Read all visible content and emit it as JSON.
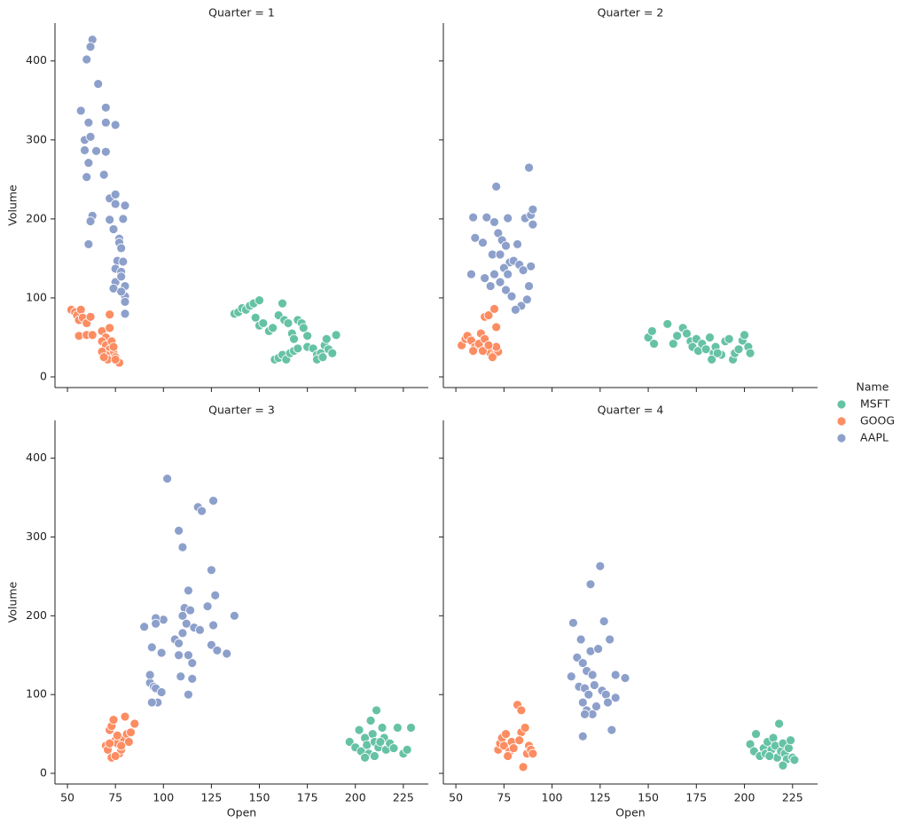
{
  "chart_data": {
    "type": "scatter",
    "xlabel": "Open",
    "ylabel": "Volume",
    "legend_title": "Name",
    "series": [
      {
        "name": "MSFT",
        "color": "#66c2a5"
      },
      {
        "name": "GOOG",
        "color": "#fc8d62"
      },
      {
        "name": "AAPL",
        "color": "#8da0cb"
      }
    ],
    "xlim": [
      43.5,
      238
    ],
    "ylim": [
      -13.5,
      448
    ],
    "xticks": [
      50,
      75,
      100,
      125,
      150,
      175,
      200,
      225
    ],
    "yticks": [
      0,
      100,
      200,
      300,
      400
    ],
    "facets": [
      {
        "title": "Quarter = 1",
        "data": [
          {
            "x": [
              137,
              139,
              141,
              143,
              145,
              147,
              150,
              148,
              150,
              152,
              155,
              157,
              160,
              162,
              163,
              165,
              167,
              168,
              170,
              172,
              173,
              175,
              158,
              160,
              162,
              164,
              166,
              168,
              170,
              175,
              178,
              180,
              182,
              184,
              185,
              186,
              188,
              190,
              180,
              183
            ],
            "values": [
              80,
              82,
              87,
              85,
              90,
              93,
              97,
              75,
              65,
              68,
              58,
              62,
              78,
              93,
              72,
              68,
              55,
              48,
              72,
              68,
              62,
              52,
              22,
              24,
              28,
              22,
              30,
              33,
              36,
              38,
              36,
              28,
              30,
              40,
              48,
              35,
              30,
              53,
              22,
              25
            ]
          },
          {
            "x": [
              52,
              54,
              55,
              56,
              57,
              58,
              60,
              62,
              56,
              60,
              63,
              68,
              70,
              72,
              72,
              68,
              70,
              72,
              74,
              75,
              76,
              77,
              70,
              68,
              73,
              74,
              71,
              69,
              75
            ],
            "values": [
              85,
              82,
              78,
              72,
              85,
              75,
              68,
              76,
              52,
              53,
              53,
              58,
              50,
              62,
              79,
              45,
              40,
              35,
              30,
              25,
              20,
              18,
              28,
              32,
              45,
              38,
              22,
              25,
              22
            ]
          },
          {
            "x": [
              63,
              62,
              60,
              66,
              57,
              70,
              61,
              70,
              75,
              59,
              62,
              65,
              70,
              59,
              61,
              60,
              69,
              72,
              75,
              75,
              80,
              63,
              62,
              72,
              79,
              74,
              61,
              77,
              77,
              78,
              76,
              79,
              75,
              78,
              75,
              78,
              80,
              74,
              80,
              80,
              80,
              78
            ],
            "values": [
              427,
              418,
              402,
              371,
              337,
              341,
              322,
              322,
              319,
              300,
              304,
              286,
              285,
              287,
              271,
              253,
              256,
              226,
              231,
              219,
              217,
              204,
              197,
              199,
              200,
              187,
              168,
              175,
              170,
              163,
              147,
              146,
              137,
              133,
              120,
              127,
              115,
              112,
              102,
              95,
              80,
              108
            ]
          }
        ]
      },
      {
        "title": "Quarter = 2",
        "data": [
          {
            "x": [
              150,
              152,
              153,
              160,
              163,
              165,
              168,
              170,
              172,
              173,
              175,
              176,
              178,
              180,
              182,
              184,
              185,
              188,
              190,
              192,
              194,
              195,
              197,
              199,
              200,
              202,
              203,
              183,
              186
            ],
            "values": [
              50,
              58,
              42,
              67,
              42,
              52,
              62,
              55,
              45,
              38,
              48,
              33,
              42,
              35,
              50,
              30,
              38,
              28,
              45,
              48,
              22,
              30,
              35,
              46,
              53,
              38,
              30,
              22,
              30
            ]
          },
          {
            "x": [
              53,
              55,
              56,
              58,
              60,
              62,
              63,
              65,
              65,
              67,
              70,
              71,
              66,
              68,
              70,
              72,
              69,
              71,
              64,
              67,
              59
            ],
            "values": [
              40,
              48,
              52,
              46,
              38,
              42,
              55,
              48,
              76,
              78,
              86,
              63,
              35,
              30,
              28,
              32,
              25,
              38,
              33,
              40,
              33
            ]
          },
          {
            "x": [
              88,
              71,
              77,
              59,
              66,
              70,
              72,
              60,
              74,
              86,
              89,
              90,
              90,
              64,
              82,
              76,
              69,
              73,
              78,
              80,
              83,
              89,
              85,
              65,
              70,
              73,
              68,
              76,
              79,
              84,
              87,
              88,
              81,
              75,
              58,
              77
            ],
            "values": [
              265,
              241,
              201,
              202,
              202,
              196,
              182,
              176,
              173,
              201,
              205,
              212,
              193,
              170,
              168,
              166,
              155,
              155,
              145,
              147,
              142,
              140,
              135,
              125,
              130,
              120,
              115,
              110,
              102,
              90,
              98,
              115,
              85,
              138,
              130,
              130
            ]
          }
        ]
      },
      {
        "title": "Quarter = 3",
        "data": [
          {
            "x": [
              197,
              200,
              202,
              203,
              205,
              206,
              207,
              208,
              209,
              210,
              211,
              212,
              214,
              215,
              216,
              218,
              220,
              222,
              225,
              227,
              229,
              205,
              210,
              213
            ],
            "values": [
              40,
              33,
              55,
              28,
              45,
              36,
              25,
              67,
              50,
              40,
              80,
              33,
              58,
              45,
              30,
              38,
              32,
              58,
              25,
              30,
              58,
              20,
              22,
              40
            ]
          },
          {
            "x": [
              70,
              71,
              72,
              73,
              74,
              75,
              76,
              77,
              78,
              79,
              80,
              81,
              82,
              83,
              85,
              73,
              75,
              76,
              72,
              78
            ],
            "values": [
              35,
              30,
              55,
              60,
              68,
              42,
              38,
              25,
              30,
              45,
              72,
              50,
              40,
              52,
              63,
              20,
              22,
              48,
              38,
              35
            ]
          },
          {
            "x": [
              102,
              126,
              118,
              120,
              108,
              110,
              125,
              113,
              127,
              111,
              114,
              123,
              137,
              100,
              110,
              112,
              116,
              119,
              126,
              90,
              96,
              96,
              106,
              108,
              110,
              113,
              115,
              125,
              128,
              133,
              108,
              94,
              99,
              93,
              95,
              96,
              99,
              115,
              97,
              94,
              113,
              109,
              93
            ],
            "values": [
              374,
              346,
              338,
              333,
              308,
              287,
              258,
              232,
              226,
              210,
              207,
              212,
              200,
              195,
              200,
              190,
              185,
              182,
              188,
              186,
              197,
              190,
              170,
              165,
              178,
              150,
              140,
              163,
              156,
              152,
              150,
              160,
              153,
              115,
              110,
              108,
              103,
              120,
              90,
              90,
              100,
              123,
              125
            ]
          }
        ]
      },
      {
        "title": "Quarter = 4",
        "data": [
          {
            "x": [
              203,
              205,
              206,
              208,
              210,
              211,
              212,
              214,
              215,
              216,
              217,
              218,
              219,
              220,
              221,
              222,
              223,
              224,
              225,
              226,
              220,
              213
            ],
            "values": [
              37,
              28,
              50,
              22,
              32,
              25,
              40,
              30,
              45,
              35,
              20,
              63,
              28,
              38,
              25,
              18,
              32,
              42,
              20,
              17,
              10,
              22
            ]
          },
          {
            "x": [
              72,
              73,
              74,
              75,
              76,
              78,
              79,
              82,
              84,
              84,
              85,
              86,
              87,
              88,
              89,
              90,
              80,
              77,
              83
            ],
            "values": [
              30,
              38,
              45,
              35,
              50,
              28,
              40,
              87,
              80,
              52,
              8,
              58,
              25,
              35,
              30,
              25,
              32,
              22,
              42
            ]
          },
          {
            "x": [
              125,
              120,
              127,
              111,
              115,
              130,
              120,
              124,
              113,
              116,
              118,
              121,
              110,
              133,
              138,
              114,
              117,
              119,
              122,
              126,
              128,
              133,
              116,
              118,
              121,
              123,
              129,
              131,
              116,
              117
            ],
            "values": [
              263,
              240,
              193,
              191,
              170,
              170,
              155,
              158,
              147,
              140,
              130,
              125,
              123,
              125,
              121,
              110,
              108,
              100,
              112,
              105,
              100,
              96,
              90,
              80,
              75,
              85,
              90,
              55,
              47,
              75
            ]
          }
        ]
      }
    ]
  }
}
